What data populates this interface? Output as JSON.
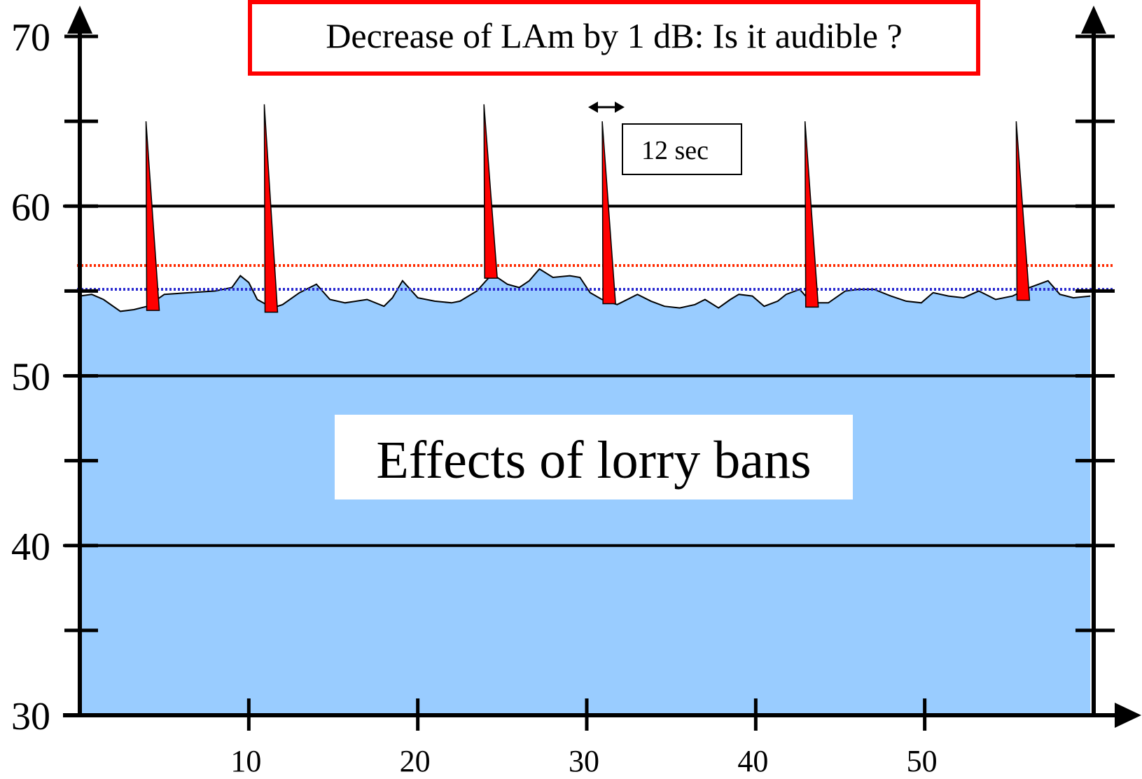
{
  "chart_data": {
    "type": "area",
    "title": "Decrease of LAm by 1 dB: Is it audible ?",
    "annotation": "Effects of lorry bans",
    "interval_label": "12 sec",
    "xlabel": "",
    "ylabel": "",
    "xlim": [
      0,
      60
    ],
    "ylim": [
      30,
      70
    ],
    "x_ticks": [
      10,
      20,
      30,
      40,
      50
    ],
    "y_ticks": [
      30,
      40,
      50,
      60,
      70
    ],
    "y_minor_ticks": [
      35,
      45,
      55,
      65
    ],
    "grid": "horizontal at 40, 50, 60",
    "reference_lines": [
      {
        "color": "#ff2a00",
        "value": 56.5,
        "style": "dotted"
      },
      {
        "color": "#2a2ad0",
        "value": 55.1,
        "style": "dotted"
      }
    ],
    "series": [
      {
        "type": "area",
        "color": "#99ccff",
        "x": [
          0,
          0.7,
          1.4,
          2.4,
          3.2,
          4,
          5,
          6.5,
          8,
          9,
          9.5,
          10,
          10.5,
          11.4,
          12,
          13,
          14,
          14.8,
          15.7,
          17,
          18,
          18.5,
          19.1,
          20,
          21,
          22,
          22.5,
          23.5,
          24.4,
          25.3,
          26,
          26.6,
          27.2,
          28,
          29,
          29.6,
          30.2,
          30.9,
          31.8,
          33,
          33.8,
          34.6,
          35.5,
          36.4,
          37,
          37.8,
          38.5,
          39,
          39.8,
          40.5,
          41.3,
          41.8,
          42.6,
          43.3,
          44.3,
          45.3,
          46.1,
          47,
          48,
          48.9,
          49.8,
          50.5,
          51.4,
          52.3,
          53.2,
          54.2,
          55.2,
          56.2,
          57.3,
          58,
          58.8,
          59.8
        ],
        "values": [
          54.7,
          54.8,
          54.5,
          53.8,
          53.9,
          54.1,
          54.8,
          54.9,
          55,
          55.2,
          55.9,
          55.5,
          54.5,
          54,
          54.2,
          54.9,
          55.4,
          54.5,
          54.3,
          54.5,
          54.1,
          54.6,
          55.6,
          54.6,
          54.4,
          54.3,
          54.4,
          55,
          56,
          55.4,
          55.2,
          55.6,
          56.3,
          55.8,
          55.9,
          55.8,
          54.9,
          54.5,
          54.2,
          54.8,
          54.4,
          54.1,
          54.0,
          54.2,
          54.5,
          54.0,
          54.5,
          54.8,
          54.7,
          54.1,
          54.4,
          54.8,
          55.1,
          54.3,
          54.3,
          55.0,
          55.1,
          55.1,
          54.7,
          54.4,
          54.3,
          54.9,
          54.7,
          54.6,
          55,
          54.5,
          54.7,
          55.2,
          55.6,
          54.8,
          54.6,
          54.7
        ]
      },
      {
        "type": "peaks",
        "color": "#ff0000",
        "x": [
          4,
          11,
          24,
          31,
          43,
          55.5
        ],
        "values": [
          65,
          66,
          66,
          65,
          65,
          65
        ]
      }
    ]
  }
}
